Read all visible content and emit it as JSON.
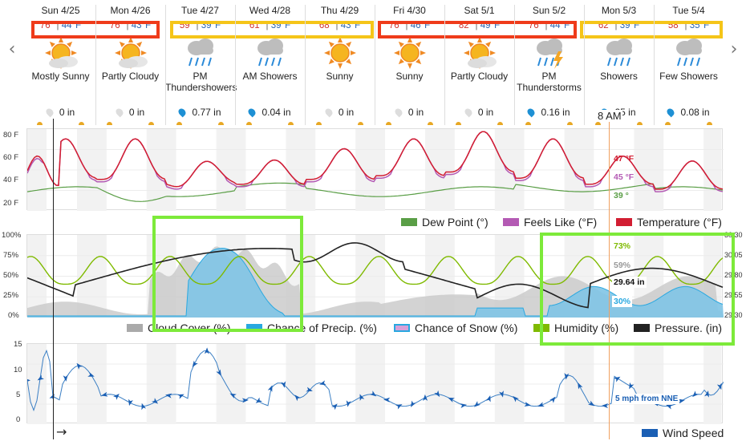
{
  "nav": {
    "prev_icon": "chevron-left-icon",
    "next_icon": "chevron-right-icon"
  },
  "days": [
    {
      "date": "Sun 4/25",
      "high": "76°",
      "low": "44°F",
      "icon": "mostly-sunny-icon",
      "condition": "Mostly Sunny",
      "precip": "0 in",
      "drop": "gray"
    },
    {
      "date": "Mon 4/26",
      "high": "76°",
      "low": "43°F",
      "icon": "partly-cloudy-icon",
      "condition": "Partly Cloudy",
      "precip": "0 in",
      "drop": "gray"
    },
    {
      "date": "Tue 4/27",
      "high": "59°",
      "low": "39°F",
      "icon": "showers-icon",
      "condition": "PM Thundershowers",
      "precip": "0.77 in",
      "drop": "blue"
    },
    {
      "date": "Wed 4/28",
      "high": "61°",
      "low": "39°F",
      "icon": "showers-icon",
      "condition": "AM Showers",
      "precip": "0.04 in",
      "drop": "blue"
    },
    {
      "date": "Thu 4/29",
      "high": "68°",
      "low": "43°F",
      "icon": "sunny-icon",
      "condition": "Sunny",
      "precip": "0 in",
      "drop": "gray"
    },
    {
      "date": "Fri 4/30",
      "high": "76°",
      "low": "46°F",
      "icon": "sunny-icon",
      "condition": "Sunny",
      "precip": "0 in",
      "drop": "gray"
    },
    {
      "date": "Sat 5/1",
      "high": "82°",
      "low": "49°F",
      "icon": "partly-cloudy-icon",
      "condition": "Partly Cloudy",
      "precip": "0 in",
      "drop": "gray"
    },
    {
      "date": "Sun 5/2",
      "high": "76°",
      "low": "44°F",
      "icon": "thunderstorm-icon",
      "condition": "PM Thunderstorms",
      "precip": "0.16 in",
      "drop": "blue"
    },
    {
      "date": "Mon 5/3",
      "high": "62°",
      "low": "39°F",
      "icon": "showers-icon",
      "condition": "Showers",
      "precip": "25 in",
      "drop": "blue"
    },
    {
      "date": "Tue 5/4",
      "high": "58°",
      "low": "35°F",
      "icon": "showers-icon",
      "condition": "Few Showers",
      "precip": "0.08 in",
      "drop": "blue"
    }
  ],
  "cursor_time": "8 AM",
  "temp_panel": {
    "y_labels": [
      "80 F",
      "60 F",
      "40 F",
      "20 F"
    ],
    "readouts": {
      "temperature": "47 °F",
      "feels_like": "45 °F",
      "dew_point": "39 °"
    },
    "legend": [
      {
        "label": "Dew Point (°)",
        "color": "#5a9e46"
      },
      {
        "label": "Feels Like (°F)",
        "color": "#b45ab4"
      },
      {
        "label": "Temperature (°F)",
        "color": "#d21e32"
      }
    ],
    "colors": {
      "temperature": "#d21e32",
      "feels_like": "#b45ab4",
      "dew_point": "#5a9e46"
    }
  },
  "cloud_panel": {
    "y_labels": [
      "100%",
      "75%",
      "50%",
      "25%",
      "0%"
    ],
    "right_labels": [
      "30.30",
      "30.05",
      "29.80",
      "29.55",
      "29.30"
    ],
    "readouts": {
      "humidity": "73%",
      "cloud": "59%",
      "pressure": "29.64 in",
      "precip": "30%"
    },
    "legend": [
      {
        "label": "Cloud Cover (%)",
        "color": "#aaaaaa"
      },
      {
        "label": "Chance of Precip. (%)",
        "color": "#29a8e0"
      },
      {
        "label": "Chance of Snow (%)",
        "color": "#d8a0d8"
      },
      {
        "label": "Humidity (%)",
        "color": "#7fba00"
      },
      {
        "label": "Pressure. (in)",
        "color": "#222222"
      }
    ]
  },
  "wind_panel": {
    "y_labels": [
      "15",
      "10",
      "5",
      "0"
    ],
    "readout": "5 mph from NNE",
    "legend": {
      "label": "Wind Speed",
      "color": "#1a5fb4"
    },
    "arrow_glyph": "→"
  },
  "highlight_colors": {
    "red": "#ef3b1a",
    "yellow": "#f5c518",
    "green": "#7dea3a"
  }
}
